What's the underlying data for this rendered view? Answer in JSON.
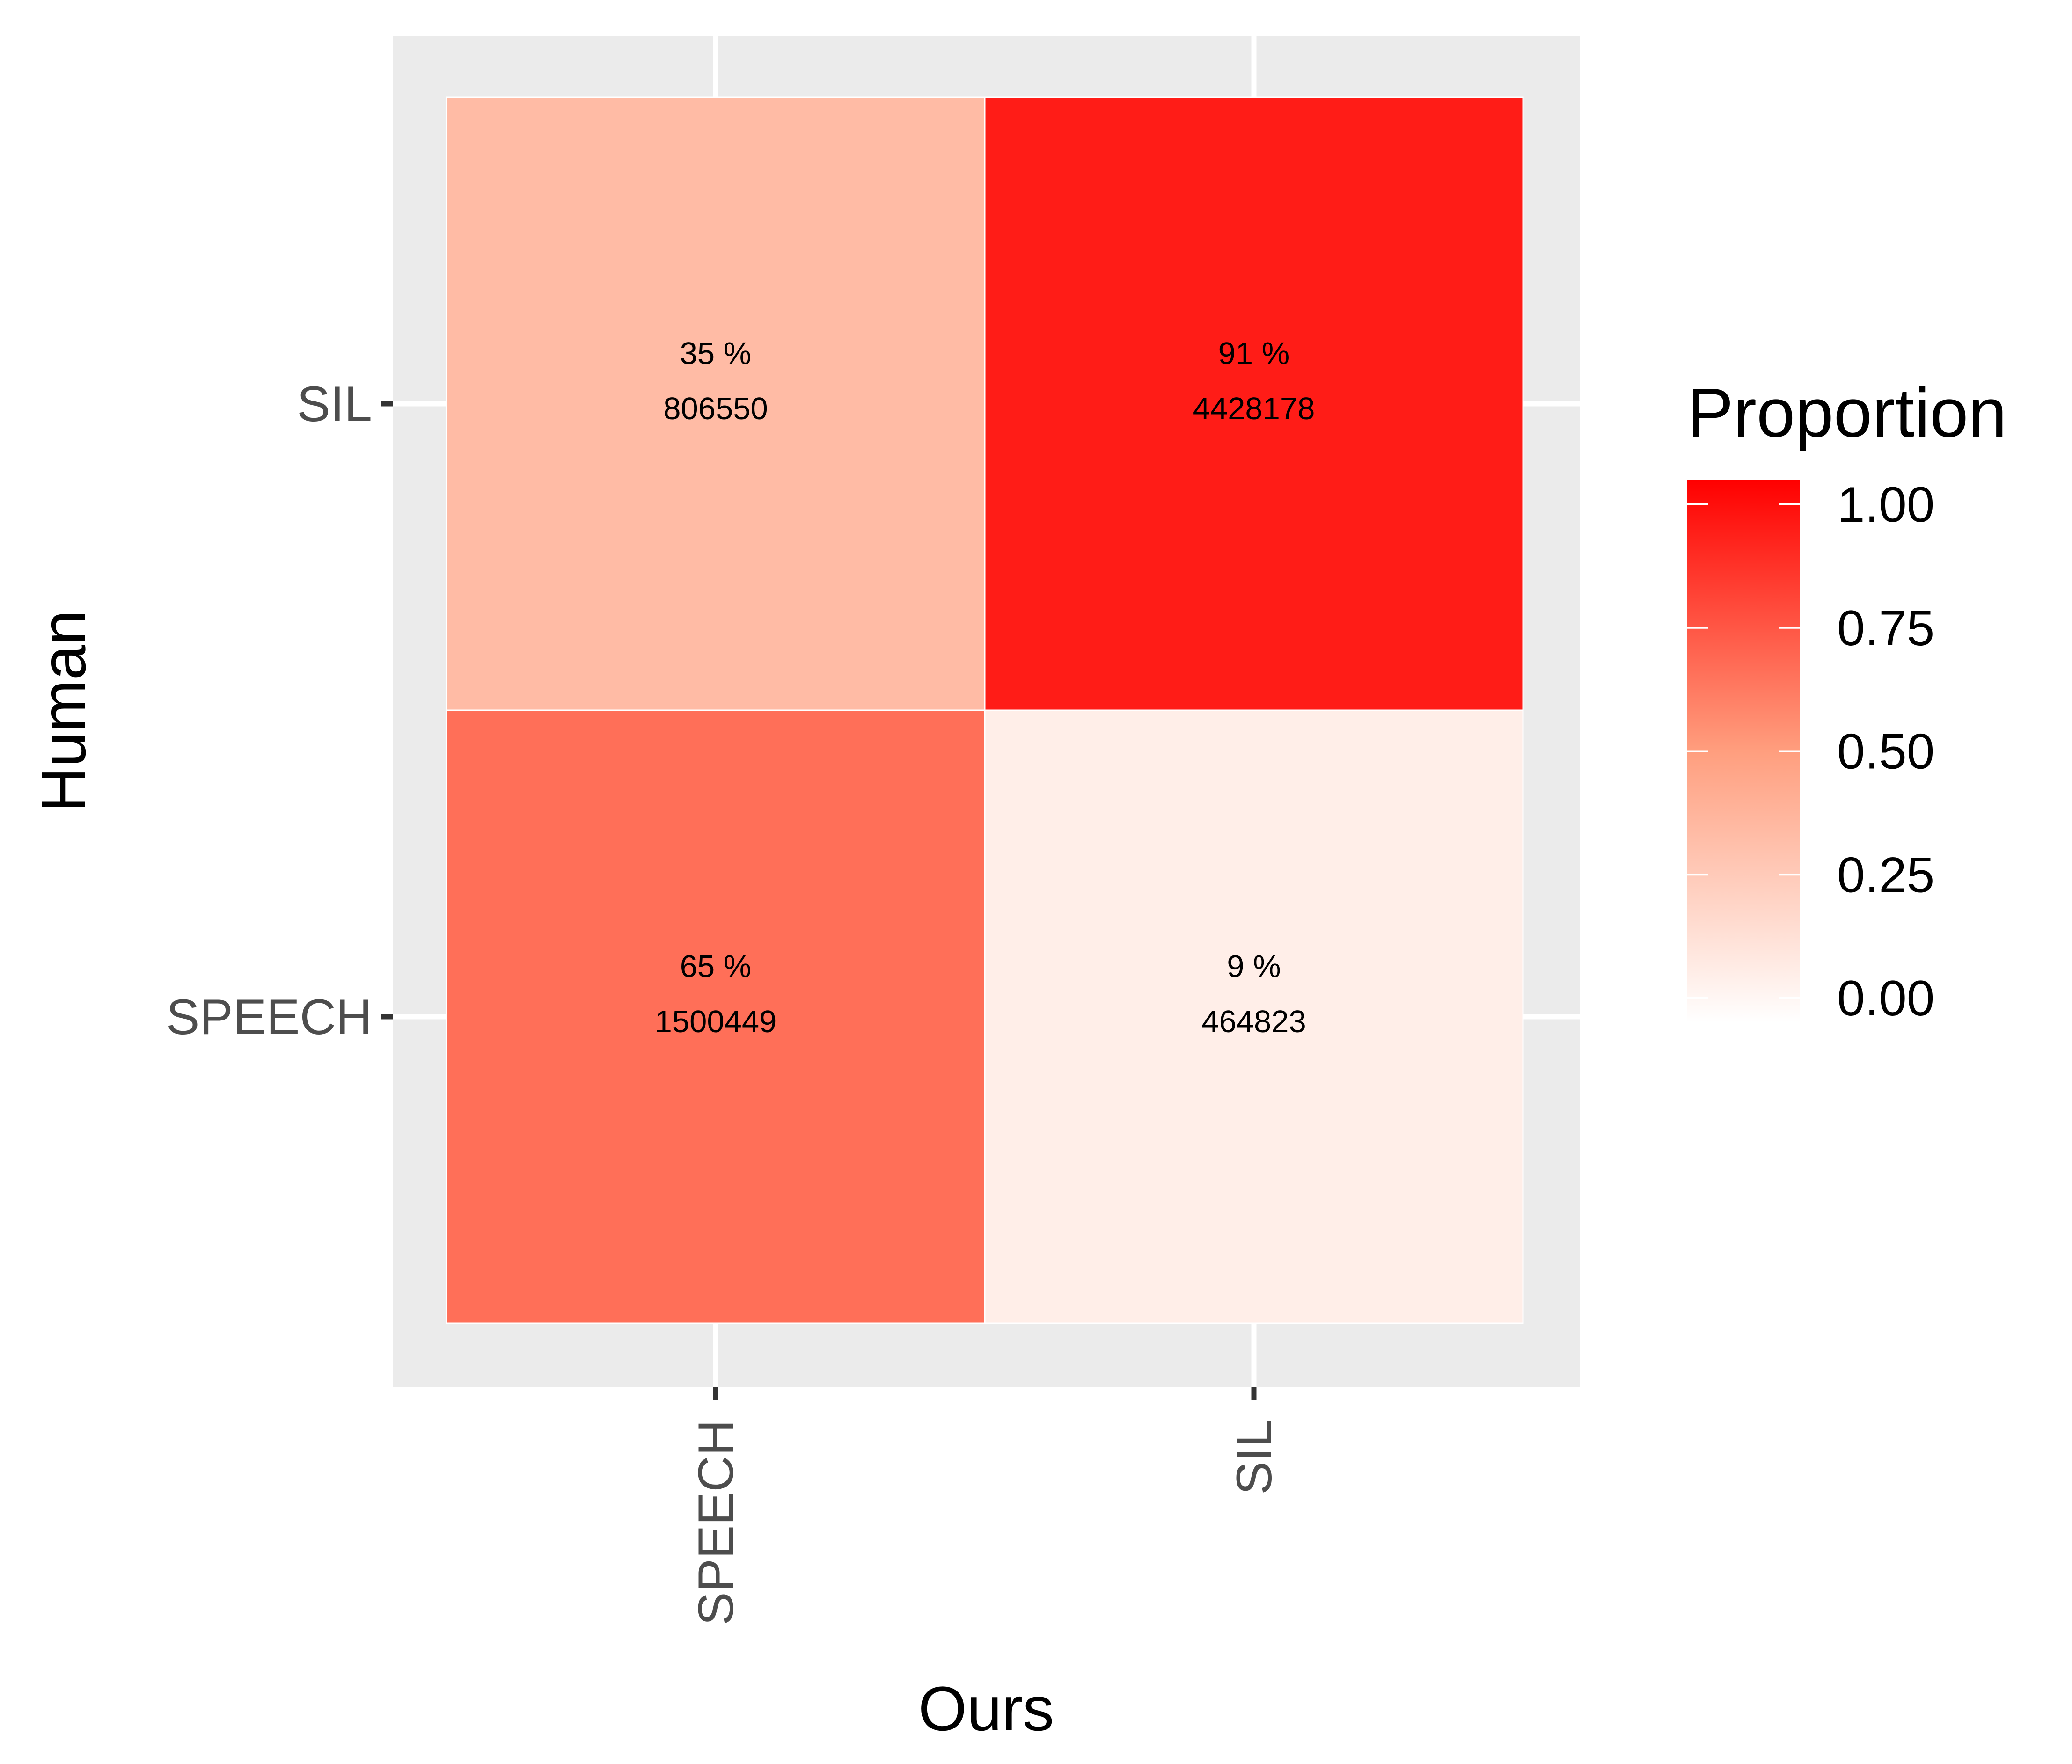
{
  "chart_data": {
    "type": "heatmap",
    "xlabel": "Ours",
    "ylabel": "Human",
    "x_categories": [
      "SPEECH",
      "SIL"
    ],
    "y_categories": [
      "SIL",
      "SPEECH"
    ],
    "cells": [
      {
        "x": "SPEECH",
        "y": "SIL",
        "proportion": 0.35,
        "percent_label": "35 %",
        "count_label": "806550"
      },
      {
        "x": "SIL",
        "y": "SIL",
        "proportion": 0.91,
        "percent_label": "91 %",
        "count_label": "4428178"
      },
      {
        "x": "SPEECH",
        "y": "SPEECH",
        "proportion": 0.65,
        "percent_label": "65 %",
        "count_label": "1500449"
      },
      {
        "x": "SIL",
        "y": "SPEECH",
        "proportion": 0.09,
        "percent_label": "9 %",
        "count_label": "464823"
      }
    ],
    "legend": {
      "title": "Proportion",
      "ticks": [
        {
          "value": 1.0,
          "label": "1.00"
        },
        {
          "value": 0.75,
          "label": "0.75"
        },
        {
          "value": 0.5,
          "label": "0.50"
        },
        {
          "value": 0.25,
          "label": "0.25"
        },
        {
          "value": 0.0,
          "label": "0.00"
        }
      ],
      "limits": [
        0,
        1
      ],
      "placement": "right"
    },
    "colors": {
      "high": "#ff0000",
      "low": "#ffffff",
      "panel_background": "#ebebeb",
      "grid": "#ffffff"
    },
    "grid": true
  }
}
